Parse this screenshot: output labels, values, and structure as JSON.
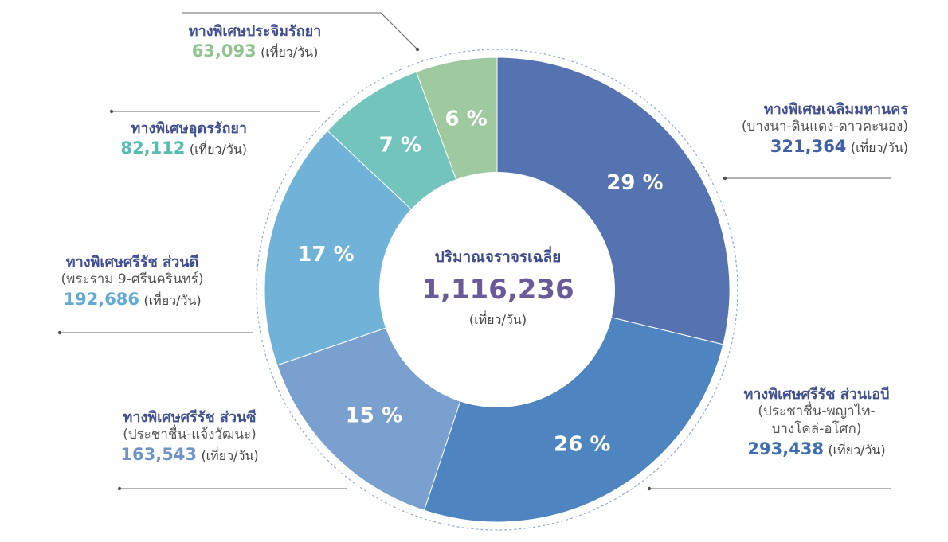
{
  "chart_data": {
    "type": "pie",
    "center": {
      "title": "ปริมาณจราจรเฉลี่ย",
      "total": "1,116,236",
      "unit": "(เที่ยว/วัน)"
    },
    "slices": [
      {
        "name": "ทางพิเศษเฉลิมมหานคร",
        "sub": [
          "(บางนา-ดินแดง-ดาวคะนอง)"
        ],
        "value": 321364,
        "value_text": "321,364",
        "percent_label": "29 %",
        "color": "#5473b0",
        "num_color": "#3f5fa8"
      },
      {
        "name": "ทางพิเศษศรีรัช ส่วนเอบี",
        "sub": [
          "(ประชาชื่น-พญาไท-",
          "บางโคล่-อโศก)"
        ],
        "value": 293438,
        "value_text": "293,438",
        "percent_label": "26 %",
        "color": "#4e84bf",
        "num_color": "#3f6fb0"
      },
      {
        "name": "ทางพิเศษศรีรัช ส่วนซี",
        "sub": [
          "(ประชาชื่น-แจ้งวัฒนะ)"
        ],
        "value": 163543,
        "value_text": "163,543",
        "percent_label": "15 %",
        "color": "#7aa0d0",
        "num_color": "#6f93c8"
      },
      {
        "name": "ทางพิเศษศรีรัช ส่วนดี",
        "sub": [
          "(พระราม 9-ศรีนครินทร์)"
        ],
        "value": 192686,
        "value_text": "192,686",
        "percent_label": "17 %",
        "color": "#71b3d8",
        "num_color": "#5faad6"
      },
      {
        "name": "ทางพิเศษอุดรรัถยา",
        "sub": [],
        "value": 82112,
        "value_text": "82,112",
        "percent_label": "7 %",
        "color": "#73c4bd",
        "num_color": "#57bcb2"
      },
      {
        "name": "ทางพิเศษประจิมรัถยา",
        "sub": [],
        "value": 63093,
        "value_text": "63,093",
        "percent_label": "6 %",
        "color": "#9fca9f",
        "num_color": "#8fc48f"
      }
    ],
    "unit": "(เที่ยว/วัน)"
  }
}
